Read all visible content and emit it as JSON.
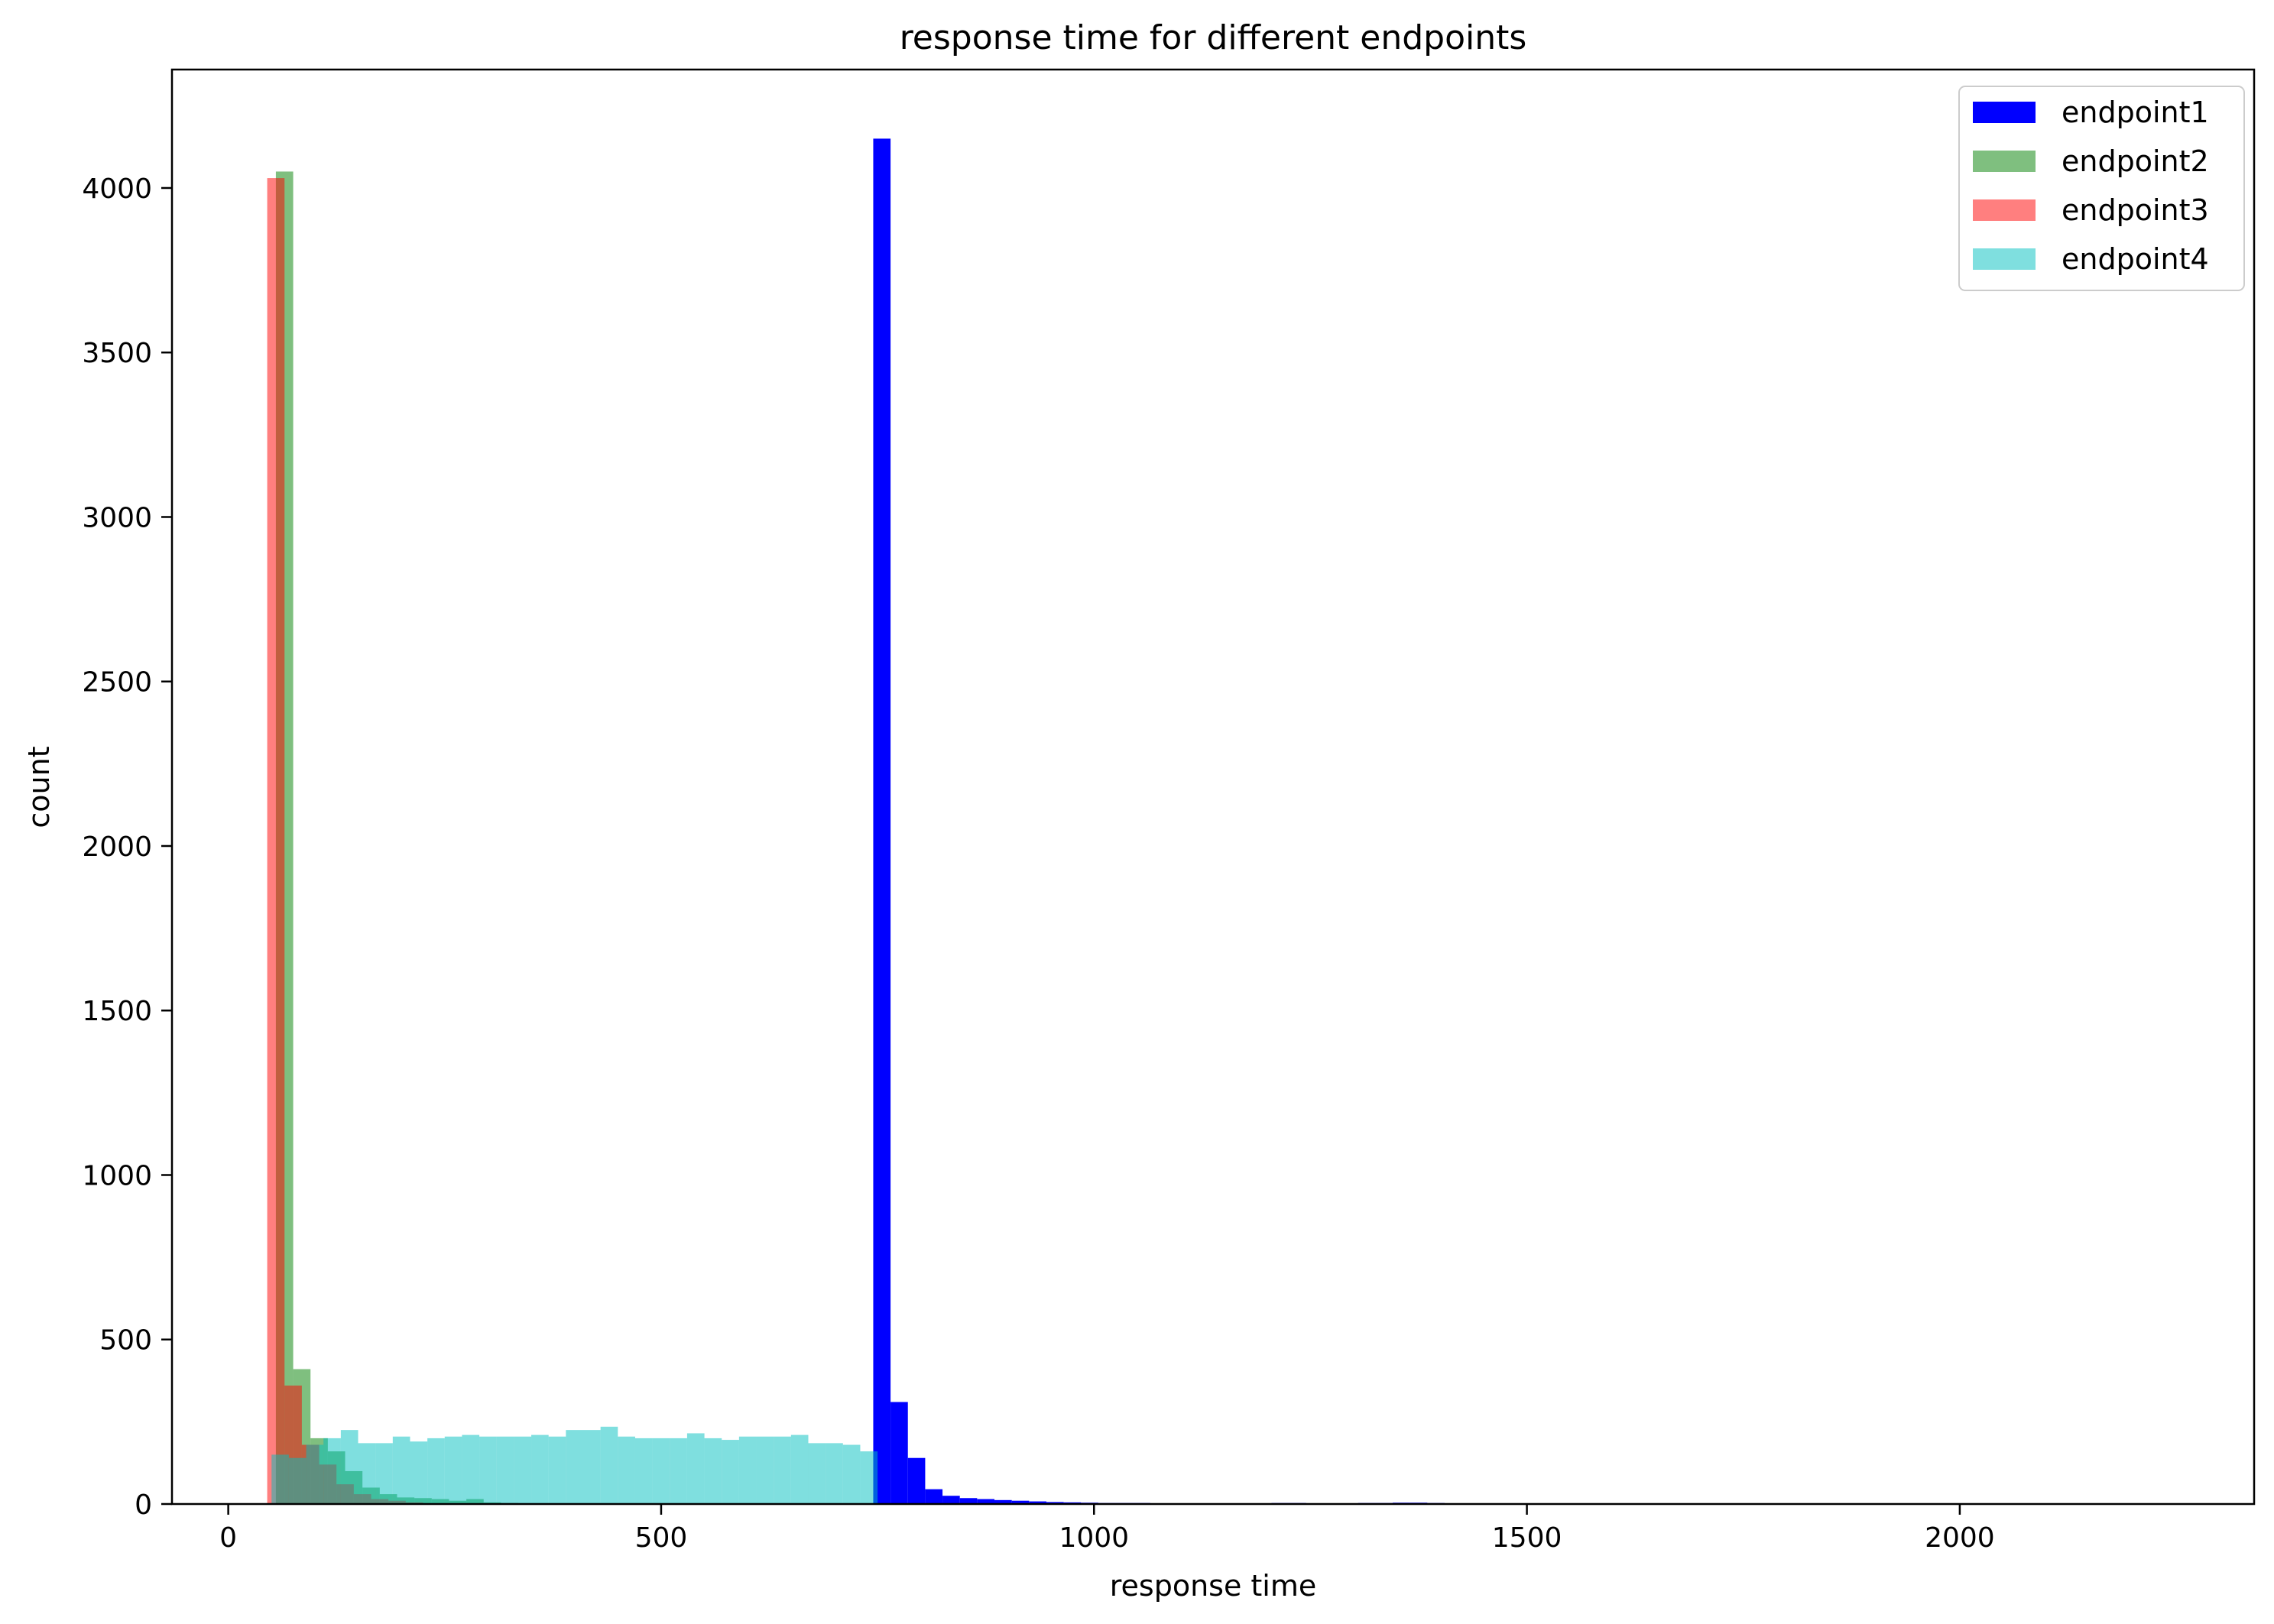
{
  "chart_data": {
    "type": "bar",
    "title": "response time for different endpoints",
    "xlabel": "response time",
    "ylabel": "count",
    "xlim": [
      -65,
      2340
    ],
    "ylim": [
      0,
      4360
    ],
    "xticks": [
      0,
      500,
      1000,
      1500,
      2000
    ],
    "yticks": [
      0,
      500,
      1000,
      1500,
      2000,
      2500,
      3000,
      3500,
      4000
    ],
    "grid": false,
    "legend_position": "top-right",
    "series": [
      {
        "name": "endpoint1",
        "color": "#0000ff",
        "opacity": 1,
        "bin_start": 745,
        "bin_width": 20,
        "values": [
          4150,
          310,
          140,
          45,
          25,
          18,
          15,
          12,
          10,
          8,
          6,
          5,
          4,
          3,
          3,
          3,
          2,
          2,
          2,
          2,
          2,
          2,
          2,
          3,
          3,
          2,
          2,
          2,
          3,
          3,
          4,
          4,
          3,
          2,
          2,
          2,
          1,
          1
        ]
      },
      {
        "name": "endpoint2",
        "color": "#008000",
        "opacity": 0.5,
        "bin_start": 55,
        "bin_width": 20,
        "values": [
          4050,
          410,
          200,
          160,
          100,
          50,
          30,
          20,
          18,
          15,
          10,
          15,
          5,
          3
        ]
      },
      {
        "name": "endpoint3",
        "color": "#ff0000",
        "opacity": 0.5,
        "bin_start": 45,
        "bin_width": 20,
        "values": [
          4030,
          360,
          180,
          120,
          60,
          30,
          15,
          10,
          5
        ]
      },
      {
        "name": "endpoint4",
        "color": "#00bfbf",
        "opacity": 0.5,
        "bin_start": 50,
        "bin_width": 20,
        "values": [
          150,
          140,
          180,
          200,
          225,
          185,
          185,
          205,
          190,
          200,
          205,
          210,
          205,
          205,
          205,
          210,
          205,
          225,
          225,
          235,
          205,
          200,
          200,
          200,
          215,
          200,
          195,
          205,
          205,
          205,
          210,
          185,
          185,
          180,
          160
        ]
      }
    ]
  }
}
